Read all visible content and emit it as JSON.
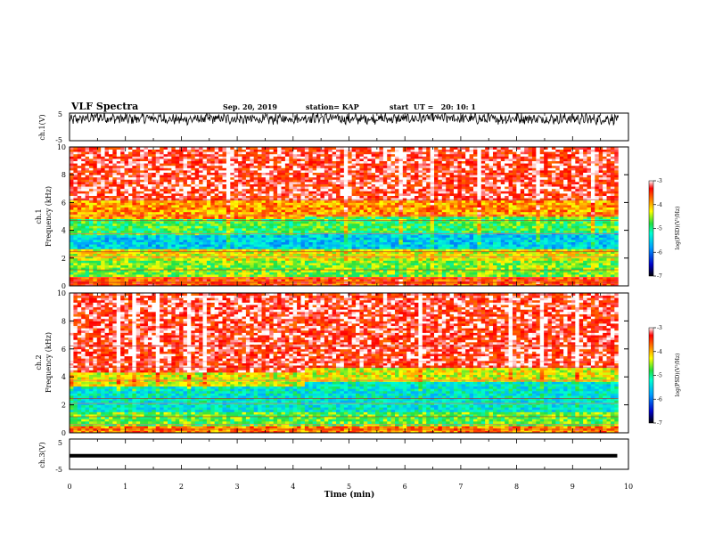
{
  "header": {
    "title": "VLF Spectra",
    "date": "Sep. 20, 2019",
    "station": "station= KAP",
    "start": "start  UT =   20: 10: 1"
  },
  "colors": {
    "axes": "#000000",
    "trace": "#000000",
    "colormap": [
      "#000000",
      "#0000c8",
      "#00a0ff",
      "#00ffd0",
      "#20e040",
      "#ffff00",
      "#ff8000",
      "#ff0000",
      "#ffffff"
    ]
  },
  "chart_data": [
    {
      "type": "line",
      "ylabel": "ch.1(V)",
      "ylim": [
        -5,
        5
      ],
      "yticks": [
        "5",
        "-5"
      ],
      "xlim": [
        0,
        10
      ],
      "note_values": "waveform noisy, roughly between 0 and 5 V",
      "x": [
        0,
        0.5,
        1,
        1.5,
        2,
        2.5,
        3,
        3.5,
        4,
        4.5,
        5,
        5.5,
        6,
        6.5,
        7,
        7.5,
        8,
        8.5,
        9,
        9.5,
        9.8
      ],
      "y": [
        2.5,
        3.5,
        2.8,
        3.2,
        2.6,
        3.0,
        2.9,
        2.7,
        3.1,
        3.3,
        2.8,
        3.0,
        2.9,
        3.2,
        3.0,
        2.8,
        3.1,
        2.9,
        3.0,
        2.7,
        3.0
      ]
    },
    {
      "type": "heatmap",
      "ylabel": "ch.1\nFrequency (kHz)",
      "ylim": [
        0,
        10
      ],
      "yticks": [
        "0",
        "2",
        "4",
        "6",
        "8",
        "10"
      ],
      "xlim": [
        0,
        9.8
      ],
      "colorbar": {
        "label": "log(PSD)(V²/Hz)",
        "range": [
          -7,
          -3
        ],
        "ticks": [
          "-3",
          "-4",
          "-5",
          "-6",
          "-7"
        ]
      },
      "bands": [
        {
          "f0": 0.0,
          "f1": 0.6,
          "level": -3.6
        },
        {
          "f0": 0.6,
          "f1": 1.8,
          "level": -4.6
        },
        {
          "f0": 1.8,
          "f1": 2.6,
          "level": -4.3
        },
        {
          "f0": 2.6,
          "f1": 3.6,
          "level": -5.5
        },
        {
          "f0": 3.6,
          "f1": 4.8,
          "level": -4.8
        },
        {
          "f0": 4.8,
          "f1": 6.2,
          "level": -3.9
        },
        {
          "f0": 6.2,
          "f1": 10.0,
          "level": -3.3
        }
      ]
    },
    {
      "type": "heatmap",
      "ylabel": "ch.2\nFrequency (kHz)",
      "ylim": [
        0,
        10
      ],
      "yticks": [
        "0",
        "2",
        "4",
        "6",
        "8",
        "10"
      ],
      "xlim": [
        0,
        9.8
      ],
      "colorbar": {
        "label": "log(PSD)(V²/Hz)",
        "range": [
          -7,
          -3
        ],
        "ticks": [
          "-3",
          "-4",
          "-5",
          "-6",
          "-7"
        ]
      },
      "bands": [
        {
          "f0": 0.0,
          "f1": 0.5,
          "level": -3.8
        },
        {
          "f0": 0.5,
          "f1": 1.5,
          "level": -4.7
        },
        {
          "f0": 1.5,
          "f1": 3.4,
          "level": -5.3
        },
        {
          "f0": 3.4,
          "f1": 4.4,
          "level": -4.3
        },
        {
          "f0": 4.4,
          "f1": 10.0,
          "level": -3.3
        }
      ]
    },
    {
      "type": "line",
      "ylabel": "ch.3(V)",
      "ylim": [
        -5,
        5
      ],
      "yticks": [
        "5",
        "-5"
      ],
      "xlim": [
        0,
        10
      ],
      "x": [
        0,
        9.8
      ],
      "y": [
        -0.5,
        -0.5
      ]
    }
  ],
  "xaxis": {
    "label": "Time (min)",
    "ticks": [
      "0",
      "1",
      "2",
      "3",
      "4",
      "5",
      "6",
      "7",
      "8",
      "9",
      "10"
    ]
  }
}
